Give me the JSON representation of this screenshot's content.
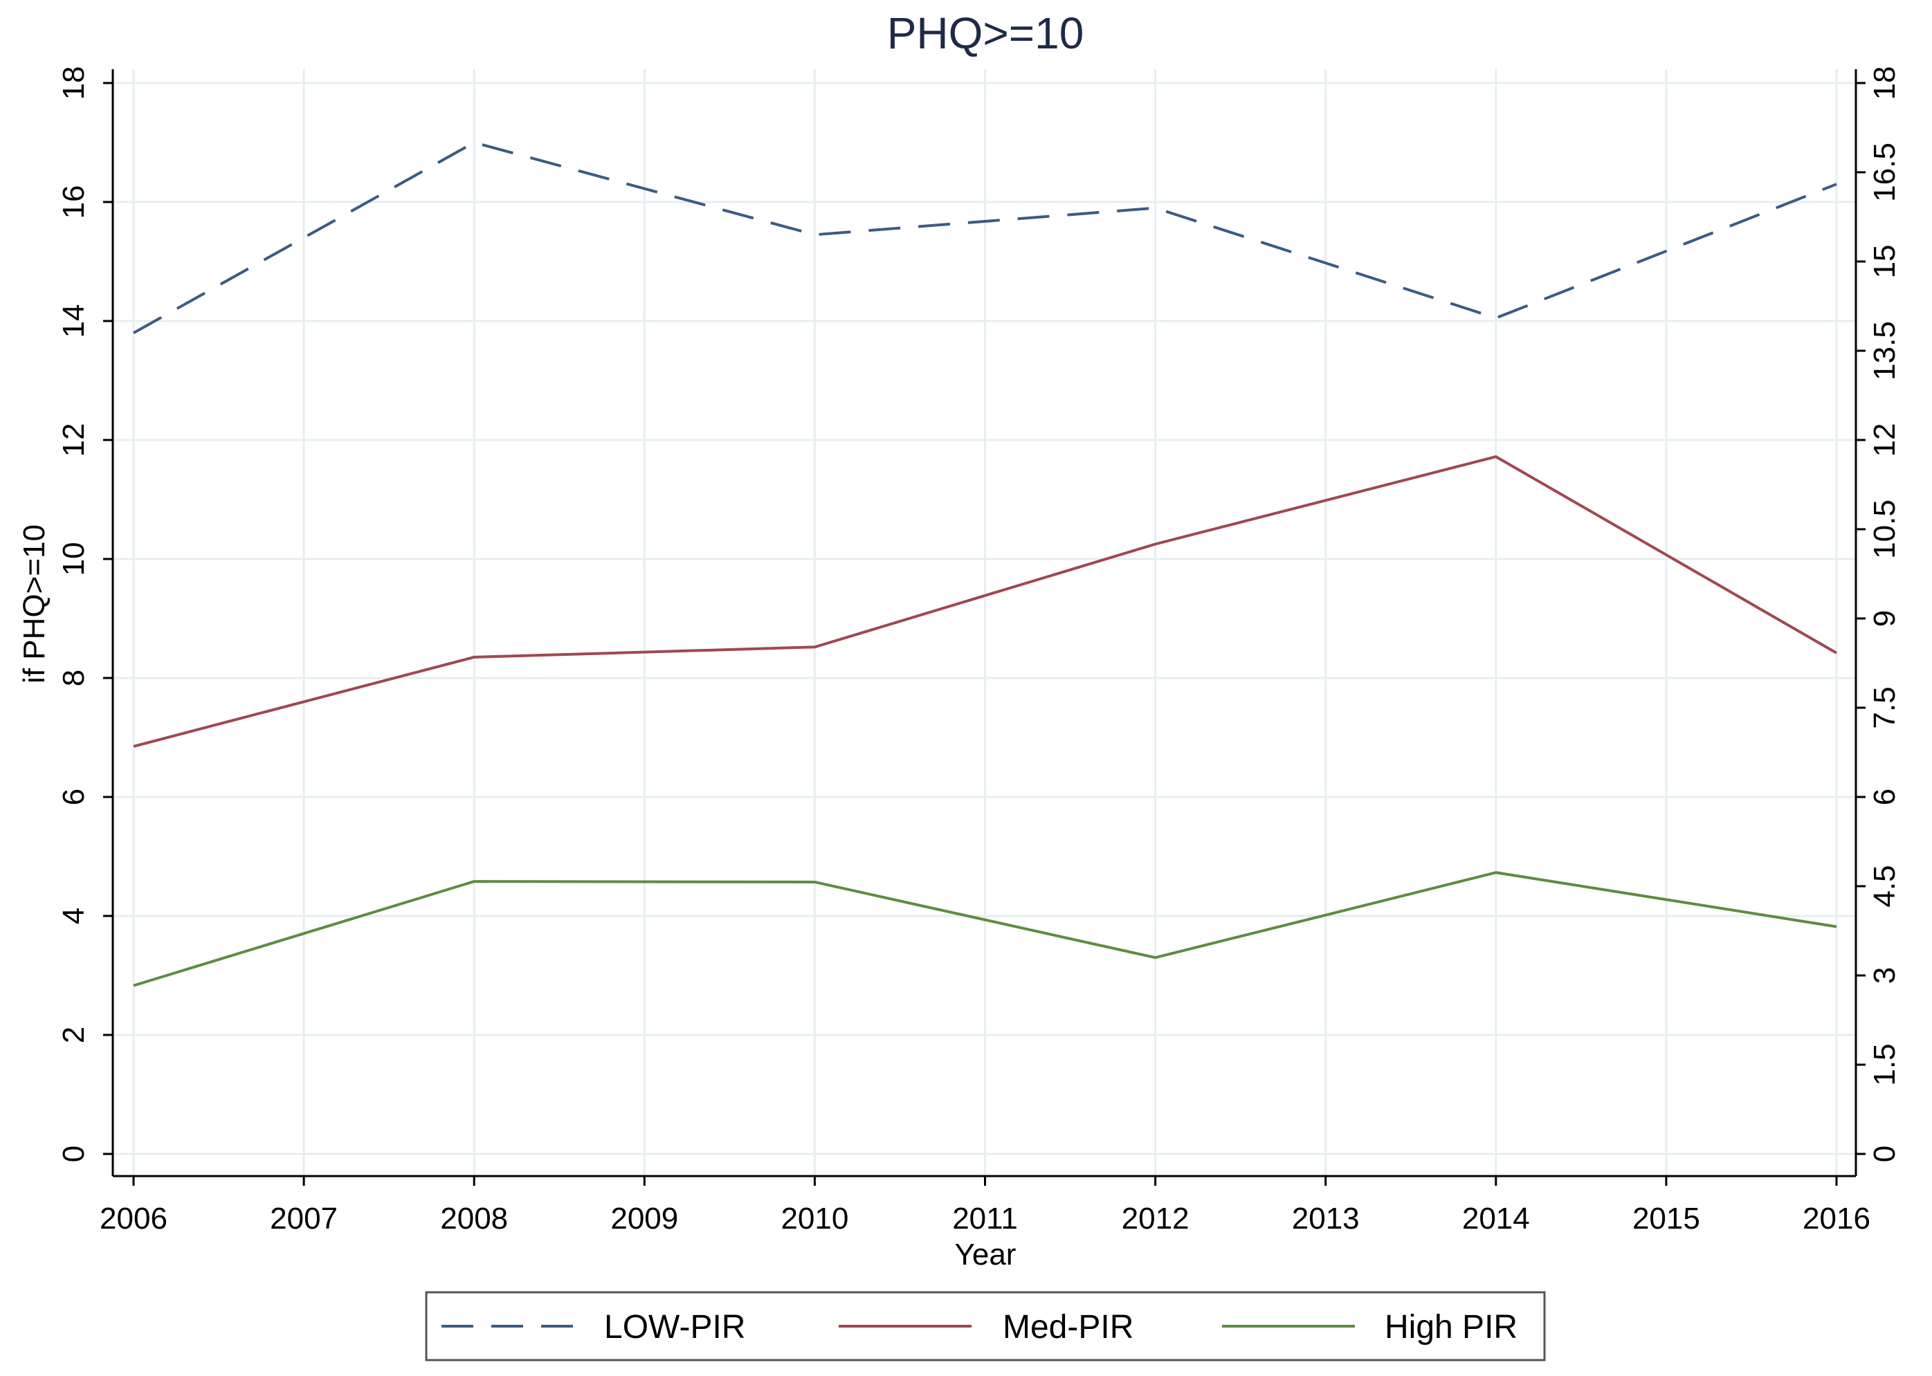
{
  "chart_data": {
    "type": "line",
    "title": "PHQ>=10",
    "xlabel": "Year",
    "ylabel": "if PHQ>=10",
    "x": [
      2006,
      2007,
      2008,
      2009,
      2010,
      2011,
      2012,
      2013,
      2014,
      2015,
      2016
    ],
    "x_ticks": [
      "2006",
      "2007",
      "2008",
      "2009",
      "2010",
      "2011",
      "2012",
      "2013",
      "2014",
      "2015",
      "2016"
    ],
    "ylim": [
      0,
      18
    ],
    "y_ticks_left": [
      "0",
      "2",
      "4",
      "6",
      "8",
      "10",
      "12",
      "14",
      "16",
      "18"
    ],
    "y_ticks_right": [
      "0",
      "1.5",
      "3",
      "4.5",
      "6",
      "7.5",
      "9",
      "10.5",
      "12",
      "13.5",
      "15",
      "16.5",
      "18"
    ],
    "grid": true,
    "legend_position": "bottom",
    "series": [
      {
        "name": "LOW-PIR",
        "x": [
          2006,
          2008,
          2010,
          2012,
          2014,
          2016
        ],
        "values": [
          13.8,
          17.0,
          15.45,
          15.9,
          14.05,
          16.3
        ],
        "color": "#3b5b82",
        "dash": true
      },
      {
        "name": "Med-PIR",
        "x": [
          2006,
          2008,
          2010,
          2012,
          2014,
          2016
        ],
        "values": [
          6.85,
          8.35,
          8.52,
          10.25,
          11.72,
          8.42
        ],
        "color": "#a04850",
        "dash": false
      },
      {
        "name": "High PIR",
        "x": [
          2006,
          2008,
          2010,
          2012,
          2014,
          2016
        ],
        "values": [
          2.83,
          4.58,
          4.57,
          3.3,
          4.73,
          3.82
        ],
        "color": "#5e8c40",
        "dash": false
      }
    ]
  }
}
